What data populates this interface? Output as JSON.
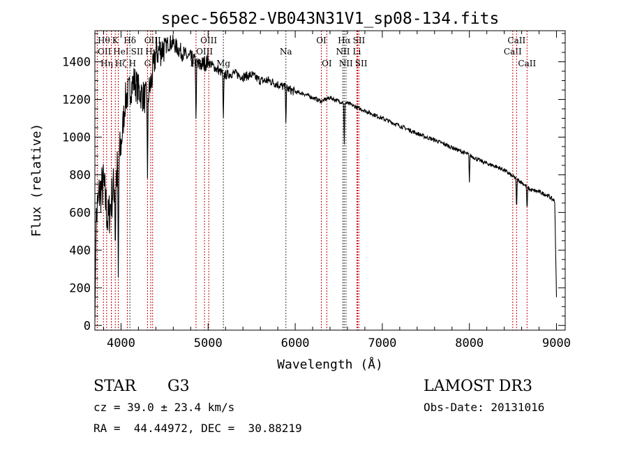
{
  "chart_data": {
    "type": "line",
    "title": "spec-56582-VB043N31V1_sp08-134.fits",
    "xlabel": "Wavelength (Å)",
    "ylabel": "Flux (relative)",
    "xlim": [
      3700,
      9100
    ],
    "ylim": [
      -25,
      1565
    ],
    "xticks": [
      4000,
      5000,
      6000,
      7000,
      8000,
      9000
    ],
    "yticks": [
      0,
      200,
      400,
      600,
      800,
      1000,
      1200,
      1400
    ],
    "grid": false,
    "series": [
      {
        "name": "flux",
        "x": [
          3700,
          3750,
          3800,
          3850,
          3900,
          3950,
          4000,
          4050,
          4100,
          4150,
          4200,
          4250,
          4300,
          4350,
          4400,
          4450,
          4500,
          4550,
          4600,
          4650,
          4700,
          4750,
          4800,
          4850,
          4900,
          4950,
          5000,
          5100,
          5200,
          5300,
          5400,
          5500,
          5600,
          5700,
          5800,
          5900,
          6000,
          6100,
          6200,
          6300,
          6400,
          6500,
          6600,
          6700,
          6800,
          6900,
          7000,
          7100,
          7200,
          7300,
          7400,
          7500,
          7600,
          7700,
          7800,
          7900,
          8000,
          8100,
          8200,
          8300,
          8400,
          8500,
          8600,
          8700,
          8800,
          8900,
          8980,
          9000
        ],
        "y": [
          500,
          700,
          750,
          550,
          700,
          800,
          950,
          1200,
          1250,
          1300,
          1250,
          1220,
          1200,
          1300,
          1450,
          1460,
          1480,
          1500,
          1500,
          1470,
          1450,
          1430,
          1420,
          1400,
          1380,
          1390,
          1400,
          1360,
          1330,
          1340,
          1320,
          1330,
          1300,
          1300,
          1280,
          1260,
          1240,
          1230,
          1210,
          1190,
          1210,
          1190,
          1180,
          1160,
          1140,
          1120,
          1100,
          1080,
          1060,
          1040,
          1020,
          1000,
          985,
          965,
          945,
          925,
          905,
          880,
          860,
          845,
          825,
          790,
          760,
          720,
          710,
          690,
          660,
          150
        ]
      }
    ],
    "absorption_dips": [
      {
        "x": 3934,
        "y": 350
      },
      {
        "x": 3969,
        "y": 170
      },
      {
        "x": 4304,
        "y": 780
      },
      {
        "x": 4861,
        "y": 1055
      },
      {
        "x": 5175,
        "y": 1070
      },
      {
        "x": 5893,
        "y": 1050
      },
      {
        "x": 6563,
        "y": 930
      },
      {
        "x": 8000,
        "y": 760
      },
      {
        "x": 8542,
        "y": 600
      },
      {
        "x": 8662,
        "y": 600
      }
    ],
    "line_markers": [
      {
        "label": "OII",
        "x": 3727,
        "row": 2,
        "color": "#c00000"
      },
      {
        "label": "Hθ",
        "x": 3798,
        "row": 1,
        "color": "#c00000"
      },
      {
        "label": "Hη",
        "x": 3835,
        "row": 3,
        "color": "#c00000"
      },
      {
        "label": "Hζ",
        "x": 3889,
        "row": 3,
        "color": "#c00000"
      },
      {
        "label": "HeI",
        "x": 3889,
        "row": 2,
        "color": "#c00000"
      },
      {
        "label": "K",
        "x": 3934,
        "row": 1,
        "color": "#c00000"
      },
      {
        "label": "H",
        "x": 3969,
        "row": 3,
        "color": "#c00000"
      },
      {
        "label": "SII",
        "x": 4072,
        "row": 2,
        "color": "#c00000"
      },
      {
        "label": "Hδ",
        "x": 4102,
        "row": 1,
        "color": "#333333"
      },
      {
        "label": "G",
        "x": 4304,
        "row": 3,
        "color": "#c00000"
      },
      {
        "label": "Hγ",
        "x": 4341,
        "row": 2,
        "color": "#c00000"
      },
      {
        "label": "OIII",
        "x": 4363,
        "row": 1,
        "color": "#c00000"
      },
      {
        "label": "Hβ",
        "x": 4861,
        "row": 3,
        "color": "#c00000"
      },
      {
        "label": "OIII",
        "x": 4959,
        "row": 2,
        "color": "#c00000"
      },
      {
        "label": "OIII",
        "x": 5007,
        "row": 1,
        "color": "#c00000"
      },
      {
        "label": "Mg",
        "x": 5175,
        "row": 3,
        "color": "#333333"
      },
      {
        "label": "Na",
        "x": 5893,
        "row": 2,
        "color": "#333333"
      },
      {
        "label": "OI",
        "x": 6300,
        "row": 1,
        "color": "#c00000"
      },
      {
        "label": "OI",
        "x": 6363,
        "row": 3,
        "color": "#c00000"
      },
      {
        "label": "NII",
        "x": 6548,
        "row": 2,
        "color": "#333333"
      },
      {
        "label": "Hα",
        "x": 6563,
        "row": 1,
        "color": "#333333"
      },
      {
        "label": "NII",
        "x": 6583,
        "row": 3,
        "color": "#333333"
      },
      {
        "label": "Li",
        "x": 6708,
        "row": 2,
        "color": "#c00000"
      },
      {
        "label": "SII",
        "x": 6716,
        "row": 1,
        "color": "#c00000"
      },
      {
        "label": "SII",
        "x": 6731,
        "row": 3,
        "color": "#c00000"
      },
      {
        "label": "CaII",
        "x": 8498,
        "row": 2,
        "color": "#c00000"
      },
      {
        "label": "CaII",
        "x": 8542,
        "row": 1,
        "color": "#c00000"
      },
      {
        "label": "CaII",
        "x": 8662,
        "row": 3,
        "color": "#c00000"
      }
    ]
  },
  "info": {
    "class": "STAR",
    "subclass": "G3",
    "survey": "LAMOST DR3",
    "cz": "cz = 39.0 ± 23.4 km/s",
    "obs_date": "Obs-Date: 20131016",
    "coords": "RA =  44.44972, DEC =  30.88219"
  }
}
